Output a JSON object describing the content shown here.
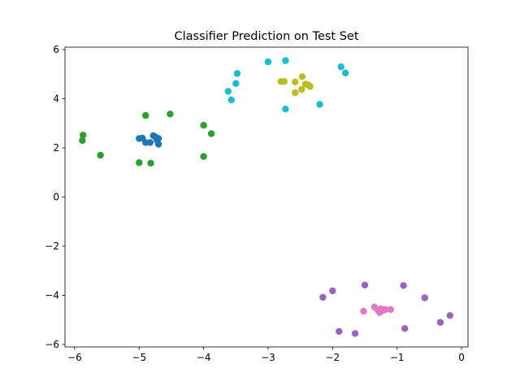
{
  "chart_data": {
    "type": "scatter",
    "title": "Classifier Prediction on Test Set",
    "xlabel": "",
    "ylabel": "",
    "xlim": [
      -6.15,
      0.1
    ],
    "ylim": [
      -6.1,
      6.1
    ],
    "xticks": [
      -6,
      -5,
      -4,
      -3,
      -2,
      -1,
      0
    ],
    "yticks": [
      -6,
      -4,
      -2,
      0,
      2,
      4,
      6
    ],
    "xtick_labels": [
      "−6",
      "−5",
      "−4",
      "−3",
      "−2",
      "−1",
      "0"
    ],
    "ytick_labels": [
      "−6",
      "−4",
      "−2",
      "0",
      "2",
      "4",
      "6"
    ],
    "grid": false,
    "series": [
      {
        "color": "#1f77b4",
        "points": [
          [
            -5.0,
            2.38
          ],
          [
            -4.95,
            2.4
          ],
          [
            -4.9,
            2.22
          ],
          [
            -4.83,
            2.22
          ],
          [
            -4.78,
            2.5
          ],
          [
            -4.75,
            2.45
          ],
          [
            -4.72,
            2.3
          ],
          [
            -4.7,
            2.38
          ],
          [
            -4.7,
            2.15
          ]
        ]
      },
      {
        "color": "#2ca02c",
        "points": [
          [
            -5.88,
            2.3
          ],
          [
            -5.87,
            2.52
          ],
          [
            -5.6,
            1.7
          ],
          [
            -5.0,
            1.4
          ],
          [
            -4.9,
            3.32
          ],
          [
            -4.82,
            1.38
          ],
          [
            -4.52,
            3.38
          ],
          [
            -4.0,
            2.92
          ],
          [
            -4.0,
            1.65
          ],
          [
            -3.88,
            2.58
          ]
        ]
      },
      {
        "color": "#17becf",
        "points": [
          [
            -3.62,
            4.3
          ],
          [
            -3.57,
            3.95
          ],
          [
            -3.5,
            4.62
          ],
          [
            -3.48,
            5.03
          ],
          [
            -3.0,
            5.5
          ],
          [
            -2.73,
            5.55
          ],
          [
            -2.73,
            3.58
          ],
          [
            -2.2,
            3.77
          ],
          [
            -1.87,
            5.3
          ],
          [
            -1.8,
            5.05
          ]
        ]
      },
      {
        "color": "#bcbd22",
        "points": [
          [
            -2.8,
            4.7
          ],
          [
            -2.75,
            4.7
          ],
          [
            -2.58,
            4.25
          ],
          [
            -2.58,
            4.68
          ],
          [
            -2.48,
            4.38
          ],
          [
            -2.47,
            4.9
          ],
          [
            -2.42,
            4.6
          ],
          [
            -2.37,
            4.55
          ],
          [
            -2.35,
            4.5
          ]
        ]
      },
      {
        "color": "#9467bd",
        "points": [
          [
            -2.15,
            -4.08
          ],
          [
            -2.0,
            -3.82
          ],
          [
            -1.9,
            -5.47
          ],
          [
            -1.65,
            -5.55
          ],
          [
            -1.5,
            -3.58
          ],
          [
            -0.9,
            -3.6
          ],
          [
            -0.88,
            -5.35
          ],
          [
            -0.57,
            -4.1
          ],
          [
            -0.33,
            -5.1
          ],
          [
            -0.18,
            -4.82
          ]
        ]
      },
      {
        "color": "#e377c2",
        "points": [
          [
            -1.52,
            -4.65
          ],
          [
            -1.35,
            -4.48
          ],
          [
            -1.3,
            -4.6
          ],
          [
            -1.27,
            -4.7
          ],
          [
            -1.25,
            -4.55
          ],
          [
            -1.22,
            -4.62
          ],
          [
            -1.18,
            -4.58
          ],
          [
            -1.1,
            -4.58
          ]
        ]
      }
    ]
  }
}
